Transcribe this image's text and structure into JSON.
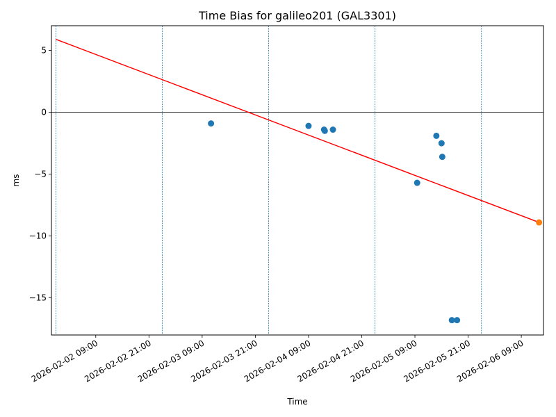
{
  "chart_data": {
    "type": "scatter",
    "title": "Time Bias for galileo201 (GAL3301)",
    "xlabel": "Time",
    "ylabel": "ms",
    "x_is_time": true,
    "xlim": [
      "2026-02-01 23:00",
      "2026-02-06 14:00"
    ],
    "ylim": [
      -18,
      7
    ],
    "x_ticks": [
      "2026-02-02 09:00",
      "2026-02-02 21:00",
      "2026-02-03 09:00",
      "2026-02-03 21:00",
      "2026-02-04 09:00",
      "2026-02-04 21:00",
      "2026-02-05 09:00",
      "2026-02-05 21:00",
      "2026-02-06 09:00"
    ],
    "y_ticks": [
      5,
      0,
      -5,
      -10,
      -15
    ],
    "y_tick_labels": [
      "5",
      "0",
      "−5",
      "−10",
      "−15"
    ],
    "day_boundaries": [
      "2026-02-02 00:00",
      "2026-02-03 00:00",
      "2026-02-04 00:00",
      "2026-02-05 00:00",
      "2026-02-06 00:00"
    ],
    "zero_line": 0,
    "series": [
      {
        "kind": "points",
        "color": "#1f77b4",
        "points": [
          {
            "x": "2026-02-03 11:00",
            "y": -0.9
          },
          {
            "x": "2026-02-04 09:00",
            "y": -1.1
          },
          {
            "x": "2026-02-04 12:30",
            "y": -1.4
          },
          {
            "x": "2026-02-04 12:40",
            "y": -1.5
          },
          {
            "x": "2026-02-04 14:30",
            "y": -1.4
          },
          {
            "x": "2026-02-05 09:30",
            "y": -5.7
          },
          {
            "x": "2026-02-05 13:50",
            "y": -1.9
          },
          {
            "x": "2026-02-05 15:00",
            "y": -2.5
          },
          {
            "x": "2026-02-05 15:10",
            "y": -3.6
          },
          {
            "x": "2026-02-05 17:20",
            "y": -16.8
          },
          {
            "x": "2026-02-05 18:30",
            "y": -16.8
          }
        ]
      },
      {
        "kind": "points",
        "color": "#ff7f0e",
        "points": [
          {
            "x": "2026-02-06 13:00",
            "y": -8.9
          }
        ]
      },
      {
        "kind": "line",
        "color": "#ff0000",
        "points": [
          {
            "x": "2026-02-02 00:00",
            "y": 5.9
          },
          {
            "x": "2026-02-06 13:00",
            "y": -8.9
          }
        ]
      }
    ],
    "grid": false
  }
}
